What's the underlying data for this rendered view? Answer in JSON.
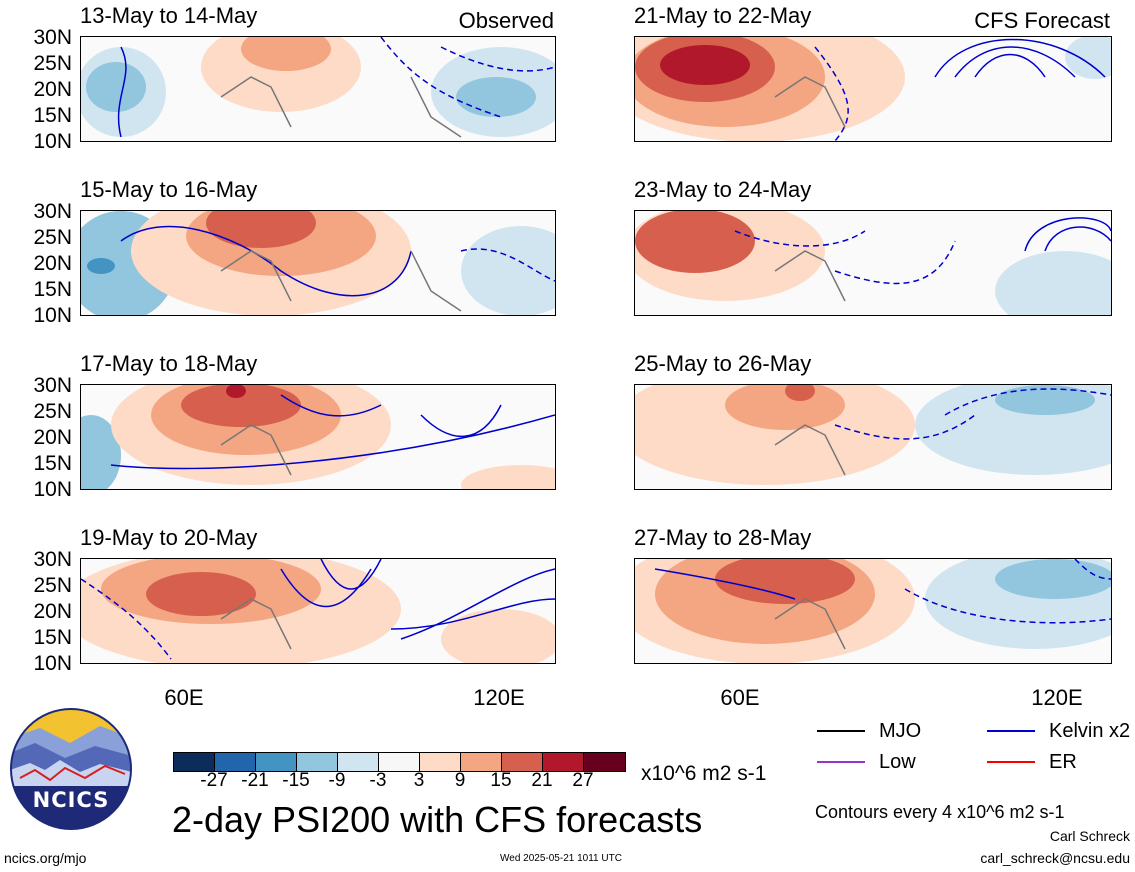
{
  "observed_tag": "Observed",
  "forecast_tag": "CFS Forecast",
  "panels": [
    {
      "title": "13-May to 14-May"
    },
    {
      "title": "15-May to 16-May"
    },
    {
      "title": "17-May to 18-May"
    },
    {
      "title": "19-May to 20-May"
    },
    {
      "title": "21-May to 22-May"
    },
    {
      "title": "23-May to 24-May"
    },
    {
      "title": "25-May to 26-May"
    },
    {
      "title": "27-May to 28-May"
    }
  ],
  "lat_labels": [
    "30N",
    "25N",
    "20N",
    "15N",
    "10N"
  ],
  "lon_labels": [
    "60E",
    "120E"
  ],
  "colorbar": {
    "colors": [
      "#0c2c5a",
      "#2166ac",
      "#4393c3",
      "#92c5de",
      "#d1e5f0",
      "#f7f7f7",
      "#fddbc7",
      "#f4a582",
      "#d6604d",
      "#b2182b",
      "#67001f"
    ],
    "ticks": [
      "-27",
      "-21",
      "-15",
      "-9",
      "-3",
      "3",
      "9",
      "15",
      "21",
      "27"
    ],
    "units": "x10^6 m2 s-1"
  },
  "title": "2-day PSI200 with CFS forecasts",
  "legend": [
    {
      "label": "MJO",
      "color": "#000000"
    },
    {
      "label": "Kelvin x2",
      "color": "#0000cc"
    },
    {
      "label": "Low",
      "color": "#9933cc"
    },
    {
      "label": "ER",
      "color": "#ff0000"
    }
  ],
  "contours_note": "Contours every 4 x10^6 m2 s-1",
  "credit": {
    "name": "Carl Schreck",
    "email": "carl_schreck@ncsu.edu"
  },
  "footer": {
    "url": "ncics.org/mjo",
    "timestamp": "Wed 2025-05-21 1011 UTC"
  },
  "logo_text": "NCICS",
  "chart_data": {
    "type": "heatmap",
    "title": "2-day PSI200 with CFS forecasts",
    "variable": "PSI200 anomaly",
    "units": "x10^6 m2 s-1",
    "xlim": [
      40,
      130
    ],
    "ylim": [
      10,
      30
    ],
    "xticks": [
      "60E",
      "120E"
    ],
    "yticks": [
      "30N",
      "25N",
      "20N",
      "15N",
      "10N"
    ],
    "color_levels": [
      -27,
      -21,
      -15,
      -9,
      -3,
      3,
      9,
      15,
      21,
      27
    ],
    "contour_interval": 4,
    "panels": [
      {
        "period": "13-May to 14-May",
        "kind": "Observed",
        "max_positive": 15,
        "min_negative": -15
      },
      {
        "period": "15-May to 16-May",
        "kind": "Observed",
        "max_positive": 21,
        "min_negative": -21
      },
      {
        "period": "17-May to 18-May",
        "kind": "Observed",
        "max_positive": 27,
        "min_negative": -15
      },
      {
        "period": "19-May to 20-May",
        "kind": "Observed",
        "max_positive": 21,
        "min_negative": -9
      },
      {
        "period": "21-May to 22-May",
        "kind": "CFS Forecast",
        "max_positive": 27,
        "min_negative": -9
      },
      {
        "period": "23-May to 24-May",
        "kind": "CFS Forecast",
        "max_positive": 21,
        "min_negative": -9
      },
      {
        "period": "25-May to 26-May",
        "kind": "CFS Forecast",
        "max_positive": 21,
        "min_negative": -15
      },
      {
        "period": "27-May to 28-May",
        "kind": "CFS Forecast",
        "max_positive": 21,
        "min_negative": -15
      }
    ]
  }
}
